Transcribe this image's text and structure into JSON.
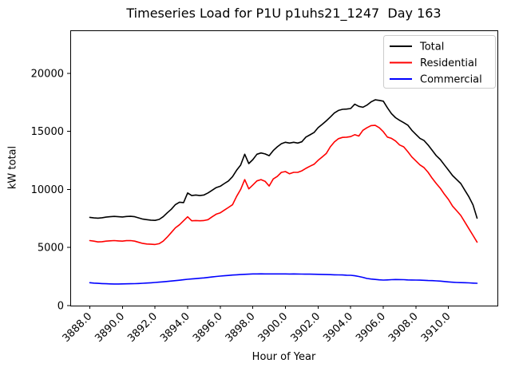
{
  "figure": {
    "background": "#ffffff",
    "plot_border_color": "#000000"
  },
  "chart_data": {
    "type": "line",
    "title": "Timeseries Load for P1U p1uhs21_1247  Day 163",
    "xlabel": "Hour of Year",
    "ylabel": "kW total",
    "xlim": [
      3886.8,
      3913.0
    ],
    "ylim": [
      0,
      23700
    ],
    "grid": false,
    "legend_position": "upper right",
    "legend_border_color": "#cccccc",
    "xticks": [
      3888,
      3890,
      3892,
      3894,
      3896,
      3898,
      3900,
      3902,
      3904,
      3906,
      3908,
      3910
    ],
    "xtick_labels": [
      "3888.0",
      "3890.0",
      "3892.0",
      "3894.0",
      "3896.0",
      "3898.0",
      "3900.0",
      "3902.0",
      "3904.0",
      "3906.0",
      "3908.0",
      "3910.0"
    ],
    "xtick_rotation": 45,
    "yticks": [
      0,
      5000,
      10000,
      15000,
      20000
    ],
    "ytick_labels": [
      "0",
      "5000",
      "10000",
      "15000",
      "20000"
    ],
    "x": [
      3888,
      3888.25,
      3888.5,
      3888.75,
      3889,
      3889.25,
      3889.5,
      3889.75,
      3890,
      3890.25,
      3890.5,
      3890.75,
      3891,
      3891.25,
      3891.5,
      3891.75,
      3892,
      3892.25,
      3892.5,
      3892.75,
      3893,
      3893.25,
      3893.5,
      3893.75,
      3894,
      3894.25,
      3894.5,
      3894.75,
      3895,
      3895.25,
      3895.5,
      3895.75,
      3896,
      3896.25,
      3896.5,
      3896.75,
      3897,
      3897.25,
      3897.5,
      3897.75,
      3898,
      3898.25,
      3898.5,
      3898.75,
      3899,
      3899.25,
      3899.5,
      3899.75,
      3900,
      3900.25,
      3900.5,
      3900.75,
      3901,
      3901.25,
      3901.5,
      3901.75,
      3902,
      3902.25,
      3902.5,
      3902.75,
      3903,
      3903.25,
      3903.5,
      3903.75,
      3904,
      3904.25,
      3904.5,
      3904.75,
      3905,
      3905.25,
      3905.5,
      3905.75,
      3906,
      3906.25,
      3906.5,
      3906.75,
      3907,
      3907.25,
      3907.5,
      3907.75,
      3908,
      3908.25,
      3908.5,
      3908.75,
      3909,
      3909.25,
      3909.5,
      3909.75,
      3910,
      3910.25,
      3910.5,
      3910.75,
      3911,
      3911.25,
      3911.5,
      3911.75
    ],
    "series": [
      {
        "name": "Total",
        "color": "#000000",
        "values": [
          7600,
          7550,
          7530,
          7560,
          7620,
          7650,
          7680,
          7650,
          7630,
          7670,
          7690,
          7650,
          7550,
          7450,
          7400,
          7360,
          7340,
          7420,
          7650,
          7990,
          8300,
          8700,
          8900,
          8870,
          9700,
          9470,
          9520,
          9470,
          9520,
          9700,
          9930,
          10160,
          10280,
          10510,
          10730,
          11100,
          11650,
          12100,
          13030,
          12230,
          12570,
          13030,
          13140,
          13060,
          12910,
          13350,
          13670,
          13940,
          14060,
          13990,
          14060,
          13990,
          14100,
          14510,
          14700,
          14900,
          15320,
          15600,
          15900,
          16230,
          16580,
          16800,
          16900,
          16920,
          16970,
          17340,
          17150,
          17080,
          17260,
          17540,
          17720,
          17670,
          17600,
          17030,
          16530,
          16180,
          15950,
          15750,
          15540,
          15090,
          14740,
          14400,
          14215,
          13825,
          13370,
          12910,
          12570,
          12110,
          11655,
          11195,
          10850,
          10510,
          9935,
          9360,
          8675,
          7530
        ]
      },
      {
        "name": "Residential",
        "color": "#ff0000",
        "values": [
          5600,
          5550,
          5480,
          5500,
          5550,
          5580,
          5600,
          5570,
          5550,
          5590,
          5600,
          5550,
          5450,
          5350,
          5300,
          5280,
          5260,
          5330,
          5550,
          5900,
          6300,
          6700,
          6960,
          7300,
          7645,
          7300,
          7320,
          7300,
          7320,
          7400,
          7645,
          7875,
          7990,
          8220,
          8450,
          8680,
          9400,
          10000,
          10850,
          10050,
          10390,
          10735,
          10850,
          10700,
          10300,
          10900,
          11120,
          11470,
          11540,
          11350,
          11470,
          11470,
          11600,
          11815,
          12000,
          12165,
          12510,
          12800,
          13090,
          13670,
          14090,
          14370,
          14480,
          14500,
          14550,
          14715,
          14600,
          15090,
          15315,
          15500,
          15520,
          15315,
          14970,
          14510,
          14400,
          14170,
          13830,
          13670,
          13255,
          12795,
          12455,
          12110,
          11880,
          11470,
          10965,
          10510,
          10095,
          9590,
          9135,
          8565,
          8170,
          7760,
          7190,
          6615,
          6045,
          5470
        ]
      },
      {
        "name": "Commercial",
        "color": "#0000ff",
        "values": [
          1970,
          1940,
          1915,
          1895,
          1880,
          1870,
          1865,
          1865,
          1870,
          1875,
          1880,
          1890,
          1905,
          1925,
          1945,
          1965,
          1990,
          2020,
          2050,
          2080,
          2115,
          2150,
          2185,
          2225,
          2265,
          2295,
          2325,
          2355,
          2385,
          2425,
          2465,
          2505,
          2540,
          2570,
          2600,
          2630,
          2655,
          2675,
          2695,
          2710,
          2725,
          2730,
          2735,
          2730,
          2725,
          2725,
          2730,
          2725,
          2725,
          2720,
          2725,
          2720,
          2715,
          2710,
          2705,
          2700,
          2690,
          2685,
          2675,
          2665,
          2655,
          2645,
          2635,
          2620,
          2610,
          2570,
          2510,
          2430,
          2335,
          2290,
          2250,
          2220,
          2200,
          2210,
          2230,
          2245,
          2240,
          2230,
          2215,
          2205,
          2200,
          2190,
          2175,
          2160,
          2150,
          2130,
          2110,
          2075,
          2040,
          2015,
          1995,
          1980,
          1970,
          1955,
          1940,
          1925
        ]
      }
    ]
  }
}
